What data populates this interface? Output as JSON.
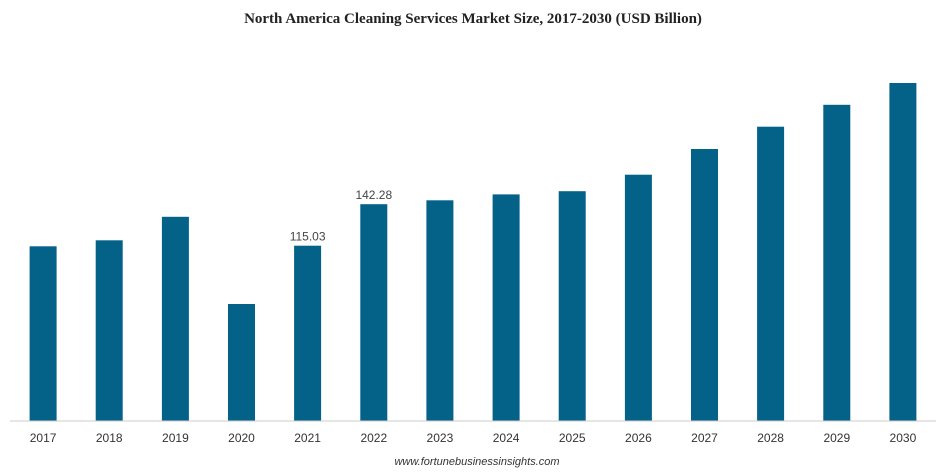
{
  "chart_data": {
    "type": "bar",
    "title": "North America Cleaning Services Market Size, 2017-2030 (USD Billion)",
    "xlabel": "",
    "ylabel": "",
    "categories": [
      "2017",
      "2018",
      "2019",
      "2020",
      "2021",
      "2022",
      "2023",
      "2024",
      "2025",
      "2026",
      "2027",
      "2028",
      "2029",
      "2030"
    ],
    "values": [
      114.6,
      118.6,
      134.0,
      76.8,
      115.03,
      142.28,
      144.8,
      148.7,
      150.8,
      161.6,
      178.5,
      193.1,
      207.5,
      221.8
    ],
    "data_labels": [
      {
        "category": "2021",
        "text": "115.03"
      },
      {
        "category": "2022",
        "text": "142.28"
      }
    ],
    "ylim": [
      0,
      250
    ],
    "grid": false,
    "legend": "none",
    "bar_color": "#046288",
    "source": "www.fortunebusinessinsights.com"
  }
}
